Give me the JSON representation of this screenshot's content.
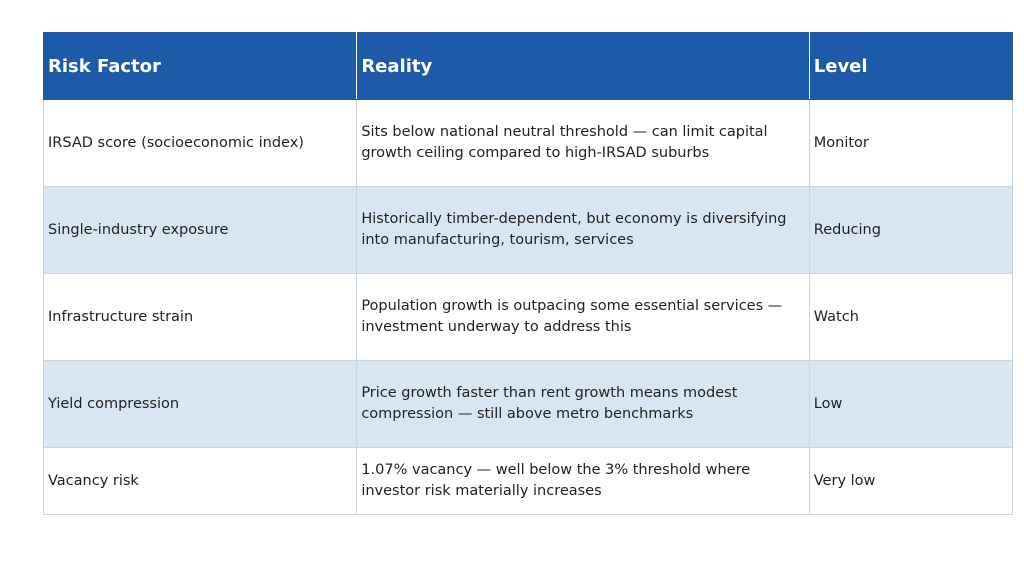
{
  "table": {
    "headers": [
      "Risk Factor",
      "Reality",
      "Level"
    ],
    "rows": [
      {
        "factor": "IRSAD score (socioeconomic index)",
        "reality": "Sits below national neutral threshold — can limit capital growth ceiling compared to high-IRSAD suburbs",
        "level": "Monitor"
      },
      {
        "factor": "Single-industry exposure",
        "reality": "Historically timber-dependent, but economy is diversifying into manufacturing, tourism, services",
        "level": "Reducing"
      },
      {
        "factor": "Infrastructure strain",
        "reality": "Population growth is outpacing some essential services — investment underway to address this",
        "level": "Watch"
      },
      {
        "factor": "Yield compression",
        "reality": "Price growth faster than rent growth means modest compression — still above metro benchmarks",
        "level": "Low"
      },
      {
        "factor": "Vacancy risk",
        "reality": "1.07% vacancy — well below the 3% threshold where investor risk materially increases",
        "level": "Very low"
      }
    ]
  },
  "colors": {
    "header_bg": "#1d5ba8",
    "header_text": "#ffffff",
    "alt_row_bg": "#d8e6f4",
    "row_bg": "#ffffff"
  }
}
